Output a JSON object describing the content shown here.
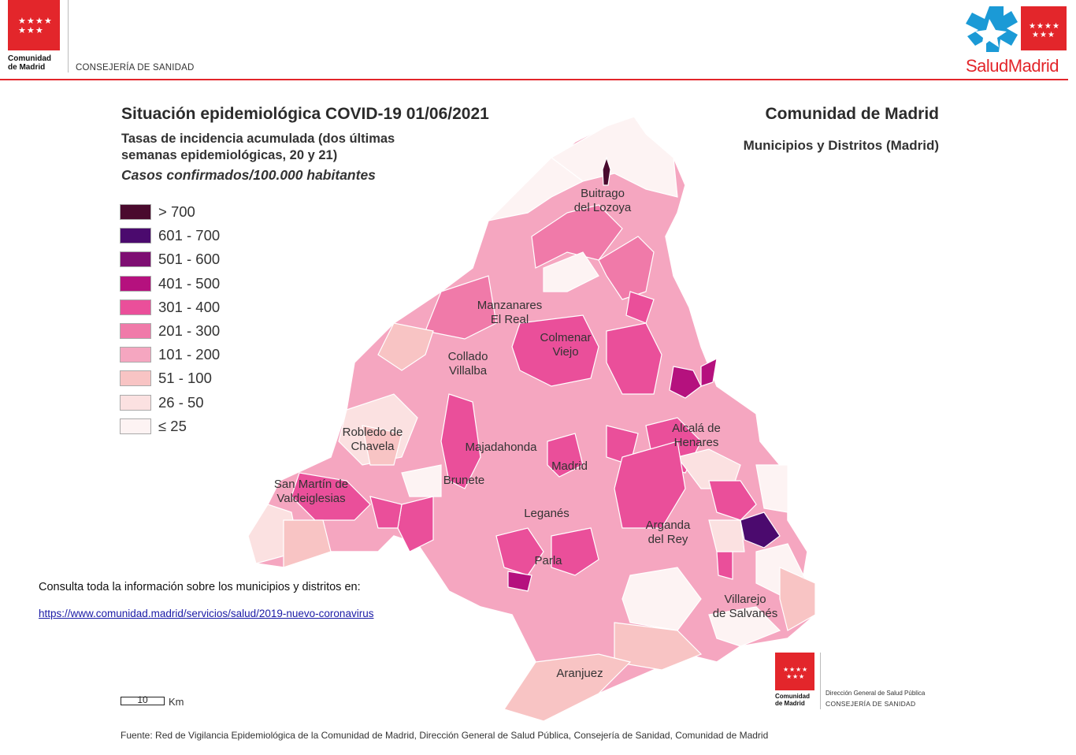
{
  "header": {
    "logo_name_line1": "Comunidad",
    "logo_name_line2": "de Madrid",
    "department": "CONSEJERÍA DE SANIDAD",
    "brand": "SaludMadrid",
    "brand_color": "#e3262b"
  },
  "title": "Situación epidemiológica COVID-19  01/06/2021",
  "subtitle_line1": "Tasas de incidencia acumulada (dos últimas",
  "subtitle_line2": "semanas epidemiológicas, 20 y 21)",
  "units": "Casos confirmados/100.000 habitantes",
  "region_title": "Comunidad de Madrid",
  "region_subtitle": "Municipios y Distritos (Madrid)",
  "legend": [
    {
      "label": "> 700",
      "color": "#4a0a2e"
    },
    {
      "label": "601 - 700",
      "color": "#4b0a6e"
    },
    {
      "label": "501 - 600",
      "color": "#7e0e72"
    },
    {
      "label": "401 - 500",
      "color": "#b5117e"
    },
    {
      "label": "301 - 400",
      "color": "#ea4f9a"
    },
    {
      "label": "201 - 300",
      "color": "#f07aa9"
    },
    {
      "label": "101 - 200",
      "color": "#f5a6c0"
    },
    {
      "label": "51 - 100",
      "color": "#f8c4c4"
    },
    {
      "label": "26 - 50",
      "color": "#fbe1e1"
    },
    {
      "label": "≤ 25",
      "color": "#fdf3f3"
    }
  ],
  "places": [
    "Buitrago\ndel Lozoya",
    "Manzanares\nEl Real",
    "Colmenar\nViejo",
    "Collado\nVillalba",
    "Robledo de\nChavela",
    "Alcalá de\nHenares",
    "Majadahonda",
    "Madrid",
    "Brunete",
    "San Martín de\nValdeiglesias",
    "Leganés",
    "Arganda\ndel Rey",
    "Parla",
    "Villarejo\nde Salvanés",
    "Aranjuez"
  ],
  "info_text": "Consulta toda la información sobre los municipios y distritos en:",
  "info_link": "https://www.comunidad.madrid/servicios/salud/2019-nuevo-coronavirus",
  "scale": {
    "value": "10",
    "unit": "Km"
  },
  "footer_logo": {
    "name_line1": "Comunidad",
    "name_line2": "de Madrid",
    "directorate": "Dirección General de Salud Pública",
    "department": "CONSEJERÍA DE SANIDAD"
  },
  "source": "Fuente: Red de Vigilancia Epidemiológica de la Comunidad de Madrid, Dirección General de Salud Pública, Consejería de Sanidad, Comunidad de Madrid"
}
